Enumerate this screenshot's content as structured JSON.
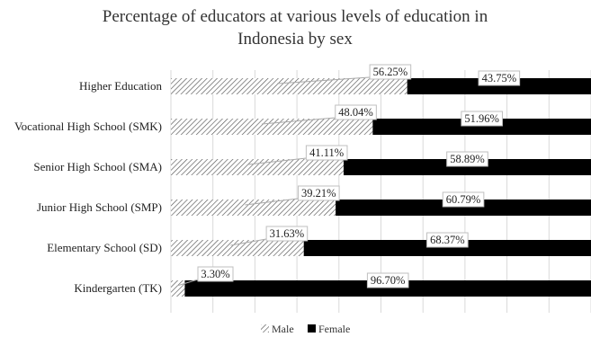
{
  "chart_data": {
    "type": "bar",
    "orientation": "horizontal",
    "stacked": "percent",
    "title": "Percentage of educators at various levels of education in Indonesia by sex",
    "title_lines": [
      "Percentage of educators at various levels of education in",
      "Indonesia by sex"
    ],
    "categories": [
      "Higher Education",
      "Vocational High School (SMK)",
      "Senior High School (SMA)",
      "Junior High School (SMP)",
      "Elementary School (SD)",
      "Kindergarten (TK)"
    ],
    "series": [
      {
        "name": "Male",
        "values": [
          56.25,
          48.04,
          41.11,
          39.21,
          31.63,
          3.3
        ],
        "labels": [
          "56.25%",
          "48.04%",
          "41.11%",
          "39.21%",
          "31.63%",
          "3.30%"
        ],
        "fill": "hatched"
      },
      {
        "name": "Female",
        "values": [
          43.75,
          51.96,
          58.89,
          60.79,
          68.37,
          96.7
        ],
        "labels": [
          "43.75%",
          "51.96%",
          "58.89%",
          "60.79%",
          "68.37%",
          "96.70%"
        ],
        "fill": "solid"
      }
    ],
    "xlim": [
      0,
      100
    ],
    "grid": "vertical",
    "legend": "bottom",
    "colors": {
      "female": "#000000",
      "male_hatch": "#555555",
      "grid": "#d9d9d9"
    }
  }
}
